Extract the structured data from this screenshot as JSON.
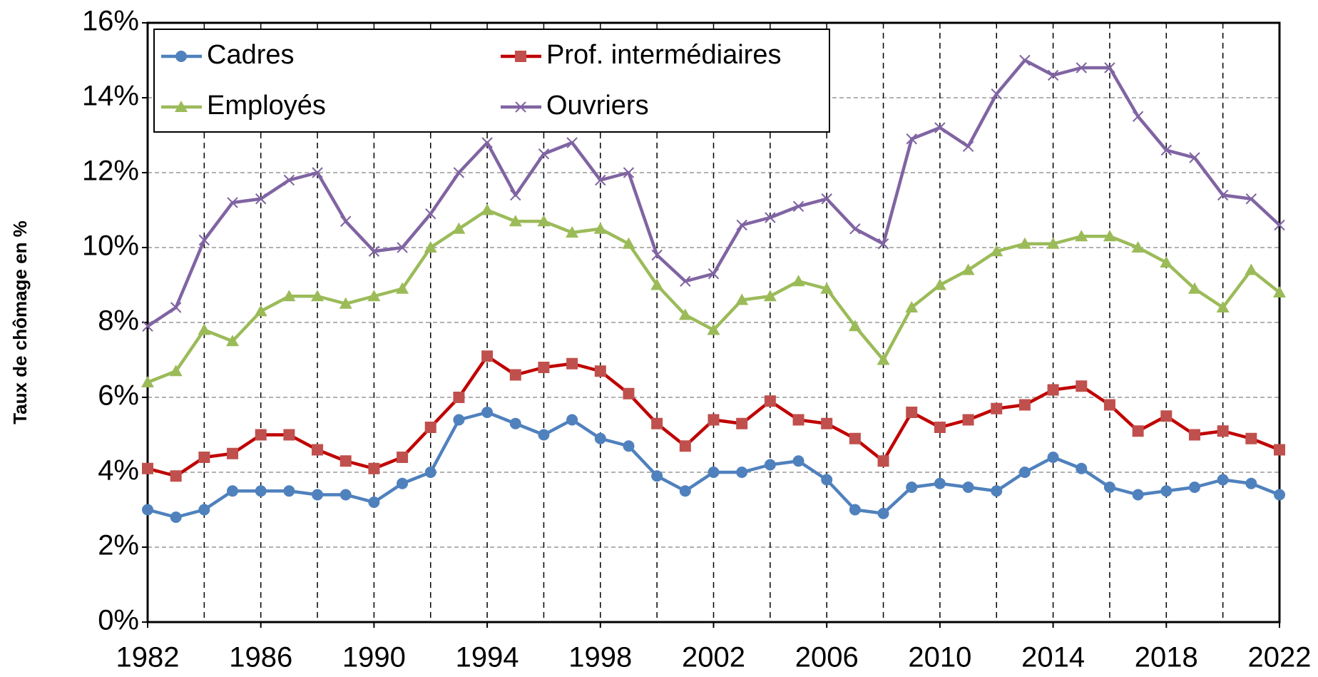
{
  "chart_data": {
    "type": "line",
    "y_label": "Taux de chômage en %",
    "x": [
      1982,
      1983,
      1984,
      1985,
      1986,
      1987,
      1988,
      1989,
      1990,
      1991,
      1992,
      1993,
      1994,
      1995,
      1996,
      1997,
      1998,
      1999,
      2000,
      2001,
      2002,
      2003,
      2004,
      2005,
      2006,
      2007,
      2008,
      2009,
      2010,
      2011,
      2012,
      2013,
      2014,
      2015,
      2016,
      2017,
      2018,
      2019,
      2020,
      2021,
      2022
    ],
    "series": [
      {
        "name": "Cadres",
        "color": "#4f81bd",
        "marker": "circle",
        "values": [
          3.0,
          2.8,
          3.0,
          3.5,
          3.5,
          3.5,
          3.4,
          3.4,
          3.2,
          3.7,
          4.0,
          5.4,
          5.6,
          5.3,
          5.0,
          5.4,
          4.9,
          4.7,
          3.9,
          3.5,
          4.0,
          4.0,
          4.2,
          4.3,
          3.8,
          3.0,
          2.9,
          3.6,
          3.7,
          3.6,
          3.5,
          4.0,
          4.4,
          4.1,
          3.6,
          3.4,
          3.5,
          3.6,
          3.8,
          3.7,
          3.4
        ]
      },
      {
        "name": "Prof. intermédiaires",
        "color": "#c0504d",
        "line_color": "#c00000",
        "marker": "square",
        "values": [
          4.1,
          3.9,
          4.4,
          4.5,
          5.0,
          5.0,
          4.6,
          4.3,
          4.1,
          4.4,
          5.2,
          6.0,
          7.1,
          6.6,
          6.8,
          6.9,
          6.7,
          6.1,
          5.3,
          4.7,
          5.4,
          5.3,
          5.9,
          5.4,
          5.3,
          4.9,
          4.3,
          5.6,
          5.2,
          5.4,
          5.7,
          5.8,
          6.2,
          6.3,
          5.8,
          5.1,
          5.5,
          5.0,
          5.1,
          4.9,
          4.6
        ]
      },
      {
        "name": "Employés",
        "color": "#9bbb59",
        "marker": "triangle",
        "values": [
          6.4,
          6.7,
          7.8,
          7.5,
          8.3,
          8.7,
          8.7,
          8.5,
          8.7,
          8.9,
          10.0,
          10.5,
          11.0,
          10.7,
          10.7,
          10.4,
          10.5,
          10.1,
          9.0,
          8.2,
          7.8,
          8.6,
          8.7,
          9.1,
          8.9,
          7.9,
          7.0,
          8.4,
          9.0,
          9.4,
          9.9,
          10.1,
          10.1,
          10.3,
          10.3,
          10.0,
          9.6,
          8.9,
          8.4,
          9.4,
          8.8
        ]
      },
      {
        "name": "Ouvriers",
        "color": "#8064a2",
        "marker": "x",
        "values": [
          7.9,
          8.4,
          10.2,
          11.2,
          11.3,
          11.8,
          12.0,
          10.7,
          9.9,
          10.0,
          10.9,
          12.0,
          12.8,
          11.4,
          12.5,
          12.8,
          11.8,
          12.0,
          9.8,
          9.1,
          9.3,
          10.6,
          10.8,
          11.1,
          11.3,
          10.5,
          10.1,
          12.9,
          13.2,
          12.7,
          14.1,
          15.0,
          14.6,
          14.8,
          14.8,
          13.5,
          12.6,
          12.4,
          11.4,
          11.3,
          10.6
        ]
      }
    ],
    "xlim": [
      1982,
      2022
    ],
    "xticks": [
      1982,
      1986,
      1990,
      1994,
      1998,
      2002,
      2006,
      2010,
      2014,
      2018,
      2022
    ],
    "x_gridlines": [
      1984,
      1986,
      1988,
      1990,
      1992,
      1994,
      1996,
      1998,
      2000,
      2002,
      2004,
      2006,
      2008,
      2010,
      2012,
      2014,
      2016,
      2018,
      2020
    ],
    "ylim": [
      0,
      16
    ],
    "yticks": [
      {
        "value": 0,
        "label": "0%"
      },
      {
        "value": 2,
        "label": "2%"
      },
      {
        "value": 4,
        "label": "4%"
      },
      {
        "value": 6,
        "label": "6%"
      },
      {
        "value": 8,
        "label": "8%"
      },
      {
        "value": 10,
        "label": "10%"
      },
      {
        "value": 12,
        "label": "12%"
      },
      {
        "value": 14,
        "label": "14%"
      },
      {
        "value": 16,
        "label": "16%"
      }
    ],
    "grid": true,
    "legend": "upper left"
  }
}
